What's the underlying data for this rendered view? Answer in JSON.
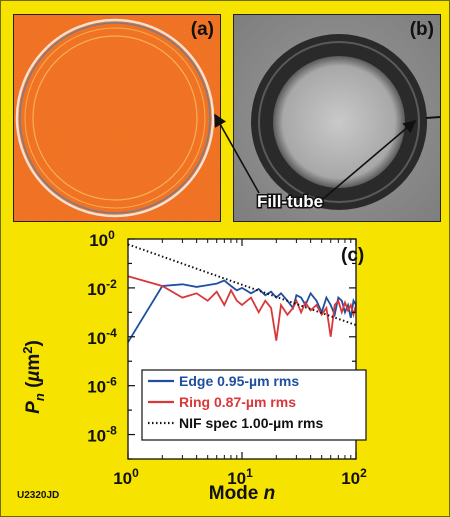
{
  "figure": {
    "code": "U2320JD",
    "panel_a_label": "(a)",
    "panel_b_label": "(b)",
    "panel_c_label": "(c)",
    "fill_tube_label": "Fill-tube"
  },
  "chart_data": {
    "type": "line",
    "xlabel": "Mode n",
    "ylabel": "Pn (µm2)",
    "xscale": "log",
    "yscale": "log",
    "xlim": [
      1,
      100
    ],
    "ylim": [
      1e-09,
      1
    ],
    "x_ticks": [
      "10^0",
      "10^1",
      "10^2"
    ],
    "y_ticks": [
      "10^0",
      "10^-2",
      "10^-4",
      "10^-6",
      "10^-8"
    ],
    "legend_position": "bottom-left",
    "series": [
      {
        "name": "Edge 0.95-µm rms",
        "color": "#1f4fa0",
        "style": "solid",
        "x": [
          1,
          2,
          3,
          4,
          5,
          6,
          7,
          8,
          9,
          10,
          12,
          14,
          16,
          18,
          20,
          22,
          25,
          28,
          30,
          33,
          36,
          40,
          45,
          50,
          55,
          60,
          65,
          70,
          75,
          80,
          85,
          90,
          95,
          100
        ],
        "y": [
          6e-05,
          0.012,
          0.014,
          0.011,
          0.013,
          0.015,
          0.02,
          0.012,
          0.008,
          0.01,
          0.006,
          0.009,
          0.005,
          0.007,
          0.004,
          0.006,
          0.003,
          0.0015,
          0.005,
          0.004,
          0.002,
          0.006,
          0.003,
          0.001,
          0.004,
          0.002,
          0.0008,
          0.004,
          0.003,
          0.001,
          0.002,
          0.0006,
          0.003,
          0.002
        ]
      },
      {
        "name": "Ring 0.87-µm rms",
        "color": "#d9383a",
        "style": "solid",
        "x": [
          1,
          2,
          3,
          4,
          5,
          6,
          7,
          8,
          9,
          10,
          12,
          14,
          16,
          18,
          20,
          22,
          25,
          28,
          30,
          33,
          36,
          40,
          45,
          50,
          55,
          60,
          65,
          70,
          75,
          80,
          85,
          90,
          95,
          100
        ],
        "y": [
          0.03,
          0.012,
          0.004,
          0.006,
          0.003,
          0.007,
          0.002,
          0.008,
          0.003,
          0.002,
          0.004,
          0.001,
          0.003,
          0.0015,
          7e-05,
          0.002,
          0.0008,
          0.0015,
          0.003,
          0.001,
          0.0025,
          0.0012,
          0.002,
          0.0008,
          0.0015,
          0.0001,
          0.002,
          0.003,
          0.001,
          0.0025,
          0.0012,
          0.002,
          0.0008,
          0.002
        ]
      },
      {
        "name": "NIF spec 1.00-µm rms",
        "color": "#111111",
        "style": "dotted",
        "x": [
          1,
          100
        ],
        "y": [
          0.6,
          0.0003
        ]
      }
    ]
  }
}
